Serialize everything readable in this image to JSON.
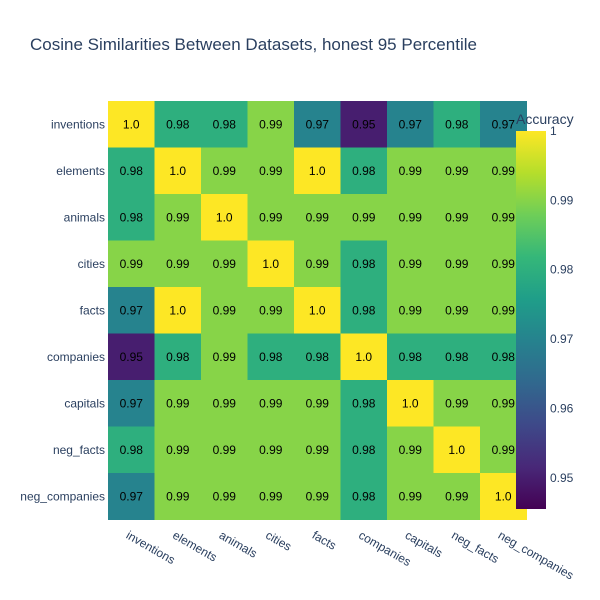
{
  "chart_data": {
    "type": "heatmap",
    "title": "Cosine Similarities Between Datasets, honest 95 Percentile",
    "x_categories": [
      "inventions",
      "elements",
      "animals",
      "cities",
      "facts",
      "companies",
      "capitals",
      "neg_facts",
      "neg_companies"
    ],
    "y_categories": [
      "inventions",
      "elements",
      "animals",
      "cities",
      "facts",
      "companies",
      "capitals",
      "neg_facts",
      "neg_companies"
    ],
    "values": [
      [
        1.0,
        0.98,
        0.98,
        0.99,
        0.97,
        0.95,
        0.97,
        0.98,
        0.97
      ],
      [
        0.98,
        1.0,
        0.99,
        0.99,
        1.0,
        0.98,
        0.99,
        0.99,
        0.99
      ],
      [
        0.98,
        0.99,
        1.0,
        0.99,
        0.99,
        0.99,
        0.99,
        0.99,
        0.99
      ],
      [
        0.99,
        0.99,
        0.99,
        1.0,
        0.99,
        0.98,
        0.99,
        0.99,
        0.99
      ],
      [
        0.97,
        1.0,
        0.99,
        0.99,
        1.0,
        0.98,
        0.99,
        0.99,
        0.99
      ],
      [
        0.95,
        0.98,
        0.99,
        0.98,
        0.98,
        1.0,
        0.98,
        0.98,
        0.98
      ],
      [
        0.97,
        0.99,
        0.99,
        0.99,
        0.99,
        0.98,
        1.0,
        0.99,
        0.99
      ],
      [
        0.98,
        0.99,
        0.99,
        0.99,
        0.99,
        0.98,
        0.99,
        1.0,
        0.99
      ],
      [
        0.97,
        0.99,
        0.99,
        0.99,
        0.99,
        0.98,
        0.99,
        0.99,
        1.0
      ]
    ],
    "value_labels": [
      [
        "1.0",
        "0.98",
        "0.98",
        "0.99",
        "0.97",
        "0.95",
        "0.97",
        "0.98",
        "0.97"
      ],
      [
        "0.98",
        "1.0",
        "0.99",
        "0.99",
        "1.0",
        "0.98",
        "0.99",
        "0.99",
        "0.99"
      ],
      [
        "0.98",
        "0.99",
        "1.0",
        "0.99",
        "0.99",
        "0.99",
        "0.99",
        "0.99",
        "0.99"
      ],
      [
        "0.99",
        "0.99",
        "0.99",
        "1.0",
        "0.99",
        "0.98",
        "0.99",
        "0.99",
        "0.99"
      ],
      [
        "0.97",
        "1.0",
        "0.99",
        "0.99",
        "1.0",
        "0.98",
        "0.99",
        "0.99",
        "0.99"
      ],
      [
        "0.95",
        "0.98",
        "0.99",
        "0.98",
        "0.98",
        "1.0",
        "0.98",
        "0.98",
        "0.98"
      ],
      [
        "0.97",
        "0.99",
        "0.99",
        "0.99",
        "0.99",
        "0.98",
        "1.0",
        "0.99",
        "0.99"
      ],
      [
        "0.98",
        "0.99",
        "0.99",
        "0.99",
        "0.99",
        "0.98",
        "0.99",
        "1.0",
        "0.99"
      ],
      [
        "0.97",
        "0.99",
        "0.99",
        "0.99",
        "0.99",
        "0.98",
        "0.99",
        "0.99",
        "1.0"
      ]
    ],
    "colorscale": "viridis",
    "zmin": 0.9455,
    "zmax": 1.0,
    "colorbar": {
      "title": "Accuracy",
      "ticks": [
        0.95,
        0.96,
        0.97,
        0.98,
        0.99,
        1
      ],
      "tick_labels": [
        "0.95",
        "0.96",
        "0.97",
        "0.98",
        "0.99",
        "1"
      ]
    }
  },
  "colors": {
    "text": "#2a3f5f",
    "viridis_stops": [
      "#440154",
      "#482878",
      "#3e4989",
      "#31688e",
      "#26828e",
      "#1f9e89",
      "#35b779",
      "#6ece58",
      "#b5de2b",
      "#fde725"
    ]
  }
}
